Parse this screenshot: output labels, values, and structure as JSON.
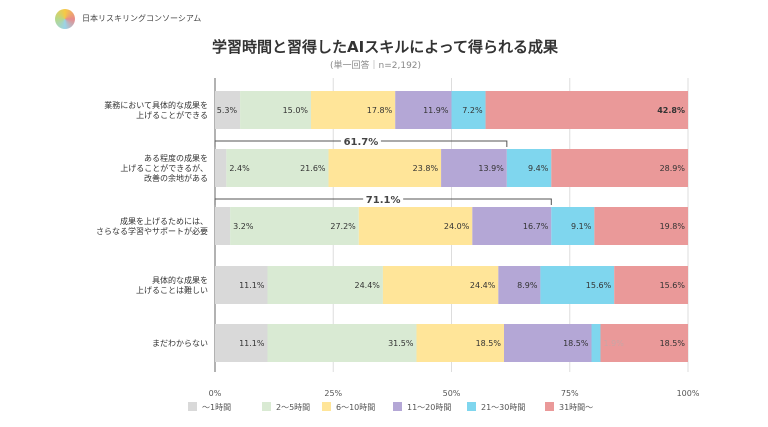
{
  "header": {
    "org": "日本リスキリングコンソーシアム",
    "title": "学習時間と習得したAIスキルによって得られる成果",
    "subtitle": "(単一回答｜n=2,192)"
  },
  "chart_data": {
    "type": "bar",
    "stacked": true,
    "orientation": "horizontal",
    "title": "学習時間と習得したAIスキルによって得られる成果",
    "categories": [
      "業務において具体的な成果を\n上げることができる",
      "ある程度の成果を\n上げることができるが、\n改善の余地がある",
      "成果を上げるためには、\nさらなる学習やサポートが必要",
      "具体的な成果を\n上げることは難しい",
      "まだわからない"
    ],
    "series": [
      {
        "name": "～1時間",
        "color": "#d9d9d9",
        "values": [
          5.3,
          2.4,
          3.2,
          11.1,
          11.1
        ]
      },
      {
        "name": "2～5時間",
        "color": "#d9ead3",
        "values": [
          15.0,
          21.6,
          27.2,
          24.4,
          31.5
        ]
      },
      {
        "name": "6～10時間",
        "color": "#ffe599",
        "values": [
          17.8,
          23.8,
          24.0,
          24.4,
          18.5
        ]
      },
      {
        "name": "11～20時間",
        "color": "#b4a7d6",
        "values": [
          11.9,
          13.9,
          16.7,
          8.9,
          18.5
        ]
      },
      {
        "name": "21～30時間",
        "color": "#7fd6ee",
        "values": [
          7.2,
          9.4,
          9.1,
          15.6,
          1.9
        ]
      },
      {
        "name": "31時間～",
        "color": "#ea9999",
        "values": [
          42.8,
          28.9,
          19.8,
          15.6,
          18.5
        ]
      }
    ],
    "annotations": [
      {
        "row": 1,
        "text": "61.7%"
      },
      {
        "row": 2,
        "text": "71.1%"
      }
    ],
    "xticks": [
      "0%",
      "25%",
      "50%",
      "75%",
      "100%"
    ],
    "xlim": [
      0,
      100
    ],
    "grid": true,
    "legend": "bottom"
  }
}
